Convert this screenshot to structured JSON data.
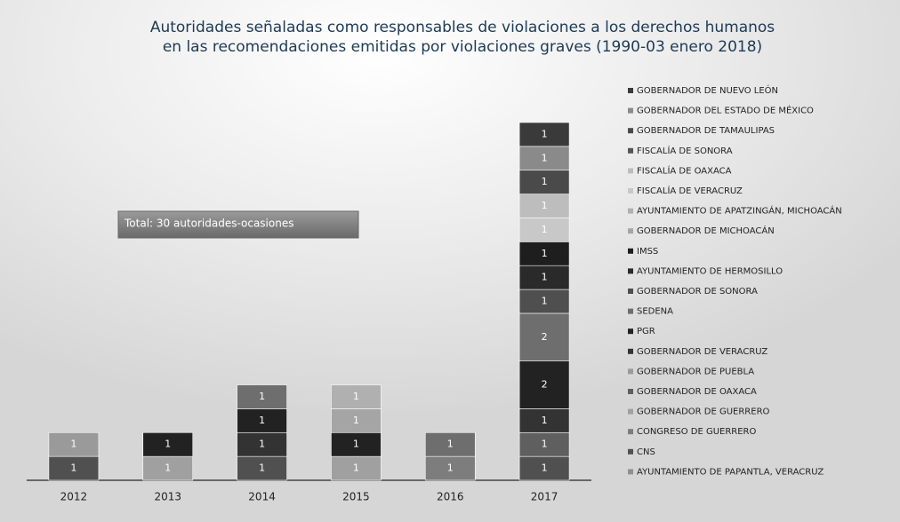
{
  "chart_data": {
    "type": "stacked_bar",
    "title": "Autoridades señaladas como responsables de violaciones a los derechos humanos",
    "subtitle": "en las recomendaciones emitidas por violaciones graves (1990-03 enero 2018)",
    "annotation": "Total: 30 autoridades-ocasiones",
    "categories": [
      "2012",
      "2013",
      "2014",
      "2015",
      "2016",
      "2017"
    ],
    "ylim": [
      0,
      15
    ],
    "series": [
      {
        "name": "GOBERNADOR DE NUEVO LEÓN",
        "color": "#3a3a3a",
        "values": [
          0,
          0,
          0,
          0,
          0,
          1
        ]
      },
      {
        "name": "GOBERNADOR DEL ESTADO DE MÉXICO",
        "color": "#8a8a8a",
        "values": [
          0,
          0,
          0,
          0,
          0,
          1
        ]
      },
      {
        "name": "GOBERNADOR DE TAMAULIPAS",
        "color": "#4a4a4a",
        "values": [
          0,
          0,
          0,
          0,
          0,
          1
        ]
      },
      {
        "name": "FISCALÍA DE SONORA",
        "color": "#555555",
        "values": [
          0,
          0,
          0,
          0,
          0,
          0
        ]
      },
      {
        "name": "FISCALÍA DE OAXACA",
        "color": "#bdbdbd",
        "values": [
          0,
          0,
          0,
          0,
          0,
          1
        ]
      },
      {
        "name": "FISCALÍA DE VERACRUZ",
        "color": "#c8c8c8",
        "values": [
          0,
          0,
          0,
          0,
          0,
          1
        ]
      },
      {
        "name": "AYUNTAMIENTO DE APATZINGÁN, MICHOACÁN",
        "color": "#b0b0b0",
        "values": [
          0,
          0,
          0,
          1,
          0,
          0
        ]
      },
      {
        "name": "GOBERNADOR DE MICHOACÁN",
        "color": "#a5a5a5",
        "values": [
          0,
          0,
          0,
          1,
          0,
          0
        ]
      },
      {
        "name": "IMSS",
        "color": "#1e1e1e",
        "values": [
          0,
          0,
          0,
          0,
          0,
          1
        ]
      },
      {
        "name": "AYUNTAMIENTO DE HERMOSILLO",
        "color": "#2a2a2a",
        "values": [
          0,
          0,
          0,
          0,
          0,
          1
        ]
      },
      {
        "name": "GOBERNADOR DE SONORA",
        "color": "#4f4f4f",
        "values": [
          0,
          0,
          0,
          0,
          0,
          1
        ]
      },
      {
        "name": "SEDENA",
        "color": "#6e6e6e",
        "values": [
          0,
          0,
          1,
          0,
          1,
          2
        ]
      },
      {
        "name": "PGR",
        "color": "#222222",
        "values": [
          0,
          1,
          1,
          1,
          0,
          2
        ]
      },
      {
        "name": "GOBERNADOR DE VERACRUZ",
        "color": "#333333",
        "values": [
          0,
          0,
          1,
          0,
          0,
          1
        ]
      },
      {
        "name": "GOBERNADOR DE PUEBLA",
        "color": "#9a9a9a",
        "values": [
          1,
          0,
          0,
          0,
          0,
          0
        ]
      },
      {
        "name": "GOBERNADOR DE OAXACA",
        "color": "#5f5f5f",
        "values": [
          0,
          0,
          0,
          0,
          0,
          1
        ]
      },
      {
        "name": "GOBERNADOR DE GUERRERO",
        "color": "#a0a0a0",
        "values": [
          0,
          1,
          0,
          1,
          0,
          0
        ]
      },
      {
        "name": "CONGRESO DE GUERRERO",
        "color": "#7d7d7d",
        "values": [
          0,
          0,
          0,
          0,
          1,
          0
        ]
      },
      {
        "name": "CNS",
        "color": "#505050",
        "values": [
          1,
          0,
          1,
          0,
          0,
          1
        ]
      },
      {
        "name": "AYUNTAMIENTO DE PAPANTLA, VERACRUZ",
        "color": "#909090",
        "values": [
          0,
          0,
          0,
          0,
          0,
          0
        ]
      }
    ]
  }
}
